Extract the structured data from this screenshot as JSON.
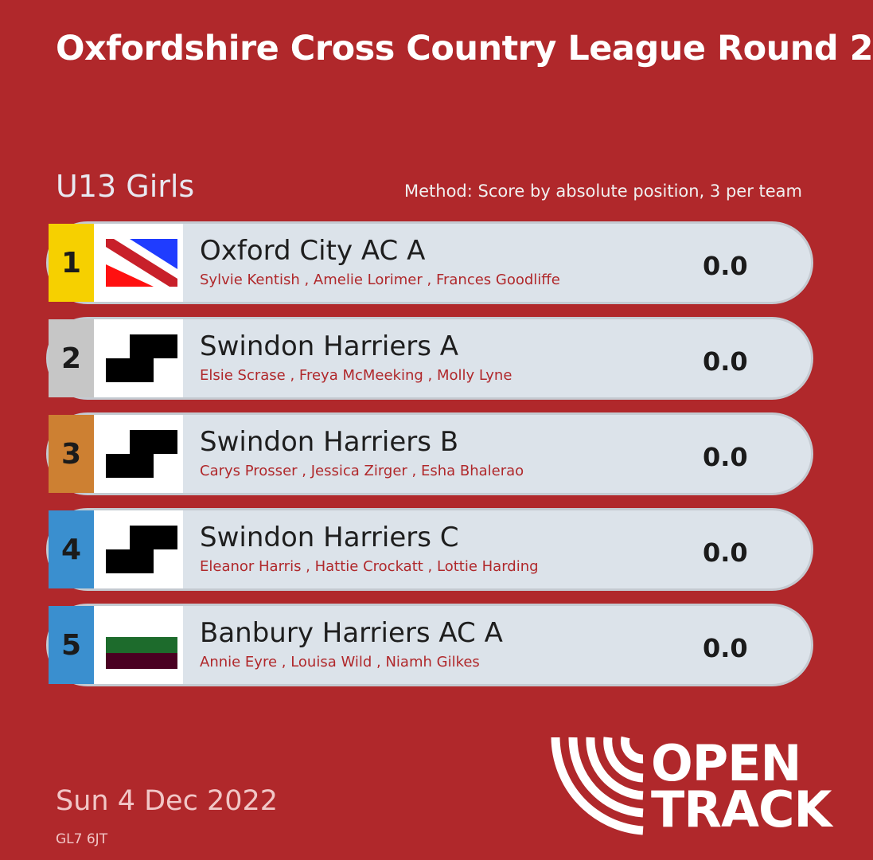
{
  "header": {
    "title": "Oxfordshire Cross Country League Round 2",
    "category": "U13 Girls",
    "method": "Method: Score by absolute position, 3 per team"
  },
  "results": [
    {
      "position": "1",
      "team": "Oxford City AC A",
      "members": "Sylvie Kentish , Amelie Lorimer , Frances Goodliffe",
      "score": "0.0",
      "flag": "oxford-city-flag",
      "position_color": "#f6d000"
    },
    {
      "position": "2",
      "team": "Swindon Harriers A",
      "members": "Elsie Scrase , Freya McMeeking , Molly Lyne",
      "score": "0.0",
      "flag": "checkered-flag",
      "position_color": "#c6c6c6"
    },
    {
      "position": "3",
      "team": "Swindon Harriers B",
      "members": "Carys Prosser , Jessica Zirger , Esha Bhalerao",
      "score": "0.0",
      "flag": "checkered-flag",
      "position_color": "#cd8032"
    },
    {
      "position": "4",
      "team": "Swindon Harriers C",
      "members": "Eleanor Harris , Hattie Crockatt , Lottie Harding",
      "score": "0.0",
      "flag": "checkered-flag",
      "position_color": "#3a8fcf"
    },
    {
      "position": "5",
      "team": "Banbury Harriers AC A",
      "members": "Annie Eyre , Louisa Wild , Niamh Gilkes",
      "score": "0.0",
      "flag": "banbury-flag",
      "position_color": "#3a8fcf"
    }
  ],
  "footer": {
    "date": "Sun 4 Dec 2022",
    "postcode": "GL7 6JT",
    "logo_line1": "OPEN",
    "logo_line2": "TRACK"
  },
  "colors": {
    "background": "#b0282b",
    "row": "#dce3ea",
    "member_text": "#b0282b"
  }
}
